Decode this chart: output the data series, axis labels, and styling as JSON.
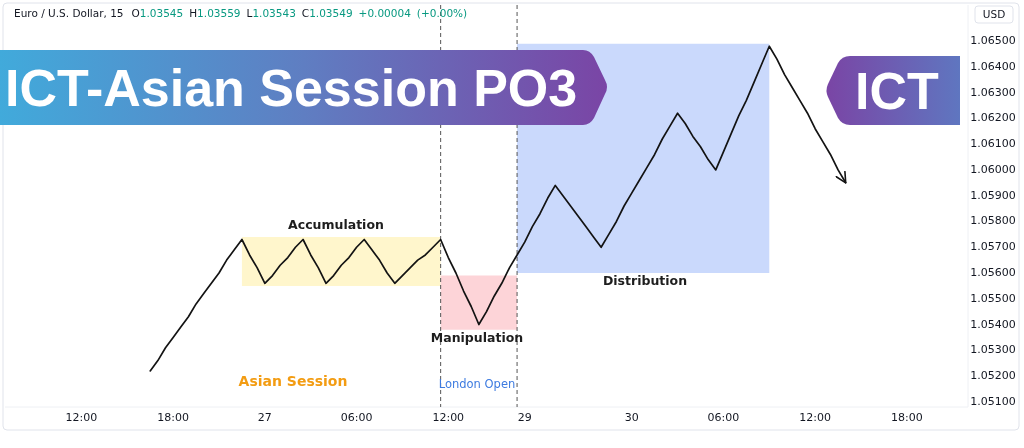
{
  "chart_data": {
    "type": "line",
    "title": "ICT-Asian Session PO3",
    "subtitle": "Euro / U.S. Dollar, 15",
    "ylabel": "USD",
    "categories": [
      null,
      null,
      null,
      null,
      null,
      null,
      null,
      null,
      null,
      null,
      "12:00",
      null,
      null,
      null,
      null,
      null,
      null,
      null,
      null,
      null,
      null,
      null,
      "18:00",
      null,
      null,
      null,
      null,
      null,
      null,
      null,
      null,
      null,
      null,
      null,
      "27",
      null,
      null,
      null,
      null,
      null,
      null,
      null,
      null,
      null,
      null,
      null,
      "06:00",
      null,
      null,
      null,
      null,
      null,
      null,
      null,
      null,
      null,
      null,
      null,
      "12:00",
      null,
      null,
      null,
      null,
      null,
      null,
      null,
      null,
      null,
      "29",
      null,
      null,
      null,
      null,
      null,
      null,
      null,
      null,
      null,
      null,
      null,
      null,
      null,
      "30",
      null,
      null,
      null,
      null,
      null,
      null,
      null,
      null,
      null,
      null,
      null,
      "06:00",
      null,
      null,
      null,
      null,
      null,
      null,
      null,
      null,
      null,
      null,
      null,
      "12:00",
      null,
      null,
      null,
      null,
      null,
      null,
      null,
      null,
      null,
      null,
      null,
      "18:00",
      null,
      null,
      null,
      null,
      null,
      null,
      null,
      null
    ],
    "ylim": [
      1.0508,
      1.0664
    ],
    "yticks": [
      {
        "value": 1.051,
        "label": "1.05100"
      },
      {
        "value": 1.052,
        "label": "1.05200"
      },
      {
        "value": 1.053,
        "label": "1.05300"
      },
      {
        "value": 1.054,
        "label": "1.05400"
      },
      {
        "value": 1.055,
        "label": "1.05500"
      },
      {
        "value": 1.056,
        "label": "1.05600"
      },
      {
        "value": 1.057,
        "label": "1.05700"
      },
      {
        "value": 1.058,
        "label": "1.05800"
      },
      {
        "value": 1.059,
        "label": "1.05900"
      },
      {
        "value": 1.06,
        "label": "1.06000"
      },
      {
        "value": 1.061,
        "label": "1.06100"
      },
      {
        "value": 1.062,
        "label": "1.06200"
      },
      {
        "value": 1.063,
        "label": "1.06300"
      },
      {
        "value": 1.064,
        "label": "1.06400"
      },
      {
        "value": 1.065,
        "label": "1.06500"
      }
    ],
    "series": [
      {
        "type": "area",
        "color": "#fff6cc",
        "values": [
          null,
          null,
          null,
          null,
          null,
          null,
          null,
          null,
          null,
          null,
          null,
          null,
          null,
          null,
          null,
          null,
          null,
          null,
          null,
          null,
          null,
          null,
          null,
          null,
          null,
          null,
          null,
          null,
          null,
          null,
          null,
          null,
          null,
          null,
          null,
          null,
          null,
          null,
          null,
          null,
          null,
          null,
          null,
          null,
          null,
          null,
          null,
          null,
          null,
          null,
          null,
          null,
          null,
          null,
          null,
          null,
          null,
          null,
          null,
          null,
          null,
          null,
          null,
          null,
          null,
          null,
          null,
          null,
          null,
          null,
          null,
          null,
          null,
          null,
          null,
          null,
          null,
          null,
          null,
          null,
          null,
          null,
          null,
          null,
          null,
          null,
          null,
          null,
          null,
          null,
          null,
          null,
          null,
          null,
          null,
          null,
          null,
          null,
          null,
          null,
          null,
          null,
          null,
          null,
          null,
          null,
          null,
          null,
          null,
          null,
          null,
          null,
          null,
          null,
          null,
          null,
          null,
          null,
          null,
          null,
          null,
          null,
          null,
          null,
          null,
          null,
          null
        ],
        "lower": [
          null,
          null,
          null,
          null,
          null,
          null,
          null,
          null,
          null,
          null,
          null,
          null,
          null,
          null,
          null,
          null,
          null,
          null,
          null,
          null,
          null,
          null,
          null,
          null,
          null,
          null,
          null,
          null,
          null,
          null,
          null,
          1.0555,
          1.0555,
          1.0555,
          1.0555,
          1.0555,
          1.0555,
          1.0555,
          1.0555,
          1.0555,
          1.0555,
          1.0555,
          1.0555,
          1.0555,
          1.0555,
          1.0555,
          1.0555,
          1.0555,
          1.0555,
          1.0555,
          1.0555,
          1.0555,
          1.0555,
          1.0555,
          1.0555,
          1.0555,
          1.0555,
          1.0555,
          null,
          null,
          null,
          null,
          null,
          null,
          null,
          null,
          null,
          null,
          null,
          null,
          null,
          null,
          null,
          null,
          null,
          null,
          null,
          null,
          null,
          null,
          null,
          null,
          null,
          null,
          null,
          null,
          null,
          null,
          null,
          null,
          null,
          null,
          null,
          null,
          null,
          null,
          null,
          null,
          null,
          null,
          null,
          null,
          null,
          null,
          null,
          null,
          null,
          null,
          null,
          null,
          null,
          null,
          null,
          null,
          null,
          null,
          null,
          null,
          null,
          null,
          null,
          null,
          null,
          null,
          null,
          null,
          null
        ],
        "upper": [
          null,
          null,
          null,
          null,
          null,
          null,
          null,
          null,
          null,
          null,
          null,
          null,
          null,
          null,
          null,
          null,
          null,
          null,
          null,
          null,
          null,
          null,
          null,
          null,
          null,
          null,
          null,
          null,
          null,
          null,
          null,
          1.0574,
          1.0574,
          1.0574,
          1.0574,
          1.0574,
          1.0574,
          1.0574,
          1.0574,
          1.0574,
          1.0574,
          1.0574,
          1.0574,
          1.0574,
          1.0574,
          1.0574,
          1.0574,
          1.0574,
          1.0574,
          1.0574,
          1.0574,
          1.0574,
          1.0574,
          1.0574,
          1.0574,
          1.0574,
          1.0574,
          1.0574,
          null,
          null,
          null,
          null,
          null,
          null,
          null,
          null,
          null,
          null,
          null,
          null,
          null,
          null,
          null,
          null,
          null,
          null,
          null,
          null,
          null,
          null,
          null,
          null,
          null,
          null,
          null,
          null,
          null,
          null,
          null,
          null,
          null,
          null,
          null,
          null,
          null,
          null,
          null,
          null,
          null,
          null,
          null,
          null,
          null,
          null,
          null,
          null,
          null,
          null,
          null,
          null,
          null,
          null,
          null,
          null,
          null,
          null,
          null,
          null,
          null,
          null,
          null,
          null,
          null,
          null,
          null,
          null,
          null
        ]
      },
      {
        "type": "area",
        "color": "#fdd4d8",
        "values": [
          null,
          null,
          null,
          null,
          null,
          null,
          null,
          null,
          null,
          null,
          null,
          null,
          null,
          null,
          null,
          null,
          null,
          null,
          null,
          null,
          null,
          null,
          null,
          null,
          null,
          null,
          null,
          null,
          null,
          null,
          null,
          null,
          null,
          null,
          null,
          null,
          null,
          null,
          null,
          null,
          null,
          null,
          null,
          null,
          null,
          null,
          null,
          null,
          null,
          null,
          null,
          null,
          null,
          null,
          null,
          null,
          null,
          null,
          null,
          null,
          null,
          null,
          null,
          null,
          null,
          null,
          null,
          null,
          null,
          null,
          null,
          null,
          null,
          null,
          null,
          null,
          null,
          null,
          null,
          null,
          null,
          null,
          null,
          null,
          null,
          null,
          null,
          null,
          null,
          null,
          null,
          null,
          null,
          null,
          null,
          null,
          null,
          null,
          null,
          null,
          null,
          null,
          null,
          null,
          null,
          null,
          null,
          null,
          null,
          null,
          null,
          null,
          null,
          null,
          null,
          null,
          null,
          null,
          null,
          null,
          null,
          null,
          null,
          null,
          null,
          null,
          null
        ],
        "lower": [
          null,
          null,
          null,
          null,
          null,
          null,
          null,
          null,
          null,
          null,
          null,
          null,
          null,
          null,
          null,
          null,
          null,
          null,
          null,
          null,
          null,
          null,
          null,
          null,
          null,
          null,
          null,
          null,
          null,
          null,
          null,
          null,
          null,
          null,
          null,
          null,
          null,
          null,
          null,
          null,
          null,
          null,
          null,
          null,
          null,
          null,
          null,
          null,
          null,
          null,
          null,
          null,
          null,
          null,
          null,
          null,
          null,
          1.0538,
          1.0538,
          1.0538,
          1.0538,
          1.0538,
          1.0538,
          1.0538,
          1.0538,
          1.0538,
          1.0538,
          1.0538,
          null,
          null,
          null,
          null,
          null,
          null,
          null,
          null,
          null,
          null,
          null,
          null,
          null,
          null,
          null,
          null,
          null,
          null,
          null,
          null,
          null,
          null,
          null,
          null,
          null,
          null,
          null,
          null,
          null,
          null,
          null,
          null,
          null,
          null,
          null,
          null,
          null,
          null,
          null,
          null,
          null,
          null,
          null,
          null,
          null,
          null,
          null,
          null,
          null,
          null,
          null,
          null,
          null,
          null,
          null,
          null,
          null,
          null,
          null
        ],
        "upper": [
          null,
          null,
          null,
          null,
          null,
          null,
          null,
          null,
          null,
          null,
          null,
          null,
          null,
          null,
          null,
          null,
          null,
          null,
          null,
          null,
          null,
          null,
          null,
          null,
          null,
          null,
          null,
          null,
          null,
          null,
          null,
          null,
          null,
          null,
          null,
          null,
          null,
          null,
          null,
          null,
          null,
          null,
          null,
          null,
          null,
          null,
          null,
          null,
          null,
          null,
          null,
          null,
          null,
          null,
          null,
          null,
          null,
          1.0559,
          1.0559,
          1.0559,
          1.0559,
          1.0559,
          1.0559,
          1.0559,
          1.0559,
          1.0559,
          1.0559,
          1.0559,
          null,
          null,
          null,
          null,
          null,
          null,
          null,
          null,
          null,
          null,
          null,
          null,
          null,
          null,
          null,
          null,
          null,
          null,
          null,
          null,
          null,
          null,
          null,
          null,
          null,
          null,
          null,
          null,
          null,
          null,
          null,
          null,
          null,
          null,
          null,
          null,
          null,
          null,
          null,
          null,
          null,
          null,
          null,
          null,
          null,
          null,
          null,
          null,
          null,
          null,
          null,
          null,
          null,
          null,
          null,
          null,
          null,
          null,
          null
        ]
      },
      {
        "type": "area",
        "color": "#cad9fc",
        "values": [
          null,
          null,
          null,
          null,
          null,
          null,
          null,
          null,
          null,
          null,
          null,
          null,
          null,
          null,
          null,
          null,
          null,
          null,
          null,
          null,
          null,
          null,
          null,
          null,
          null,
          null,
          null,
          null,
          null,
          null,
          null,
          null,
          null,
          null,
          null,
          null,
          null,
          null,
          null,
          null,
          null,
          null,
          null,
          null,
          null,
          null,
          null,
          null,
          null,
          null,
          null,
          null,
          null,
          null,
          null,
          null,
          null,
          null,
          null,
          null,
          null,
          null,
          null,
          null,
          null,
          null,
          null,
          null,
          null,
          null,
          null,
          null,
          null,
          null,
          null,
          null,
          null,
          null,
          null,
          null,
          null,
          null,
          null,
          null,
          null,
          null,
          null,
          null,
          null,
          null,
          null,
          null,
          null,
          null,
          null,
          null,
          null,
          null,
          null,
          null,
          null,
          null,
          null,
          null,
          null,
          null,
          null,
          null,
          null,
          null,
          null,
          null,
          null,
          null,
          null,
          null,
          null,
          null,
          null,
          null,
          null,
          null,
          null,
          null,
          null,
          null,
          null
        ],
        "lower": [
          null,
          null,
          null,
          null,
          null,
          null,
          null,
          null,
          null,
          null,
          null,
          null,
          null,
          null,
          null,
          null,
          null,
          null,
          null,
          null,
          null,
          null,
          null,
          null,
          null,
          null,
          null,
          null,
          null,
          null,
          null,
          null,
          null,
          null,
          null,
          null,
          null,
          null,
          null,
          null,
          null,
          null,
          null,
          null,
          null,
          null,
          null,
          null,
          null,
          null,
          null,
          null,
          null,
          null,
          null,
          null,
          null,
          null,
          null,
          null,
          null,
          null,
          null,
          null,
          null,
          null,
          null,
          1.056,
          1.056,
          1.056,
          1.056,
          1.056,
          1.056,
          1.056,
          1.056,
          1.056,
          1.056,
          1.056,
          1.056,
          1.056,
          1.056,
          1.056,
          1.056,
          1.056,
          1.056,
          1.056,
          1.056,
          1.056,
          1.056,
          1.056,
          1.056,
          1.056,
          1.056,
          1.056,
          1.056,
          1.056,
          1.056,
          1.056,
          1.056,
          1.056,
          1.056,
          null,
          null,
          null,
          null,
          null,
          null,
          null,
          null,
          null,
          null,
          null,
          null,
          null,
          null,
          null,
          null,
          null,
          null,
          null,
          null,
          null,
          null,
          null,
          null,
          null,
          null
        ],
        "upper": [
          null,
          null,
          null,
          null,
          null,
          null,
          null,
          null,
          null,
          null,
          null,
          null,
          null,
          null,
          null,
          null,
          null,
          null,
          null,
          null,
          null,
          null,
          null,
          null,
          null,
          null,
          null,
          null,
          null,
          null,
          null,
          null,
          null,
          null,
          null,
          null,
          null,
          null,
          null,
          null,
          null,
          null,
          null,
          null,
          null,
          null,
          null,
          null,
          null,
          null,
          null,
          null,
          null,
          null,
          null,
          null,
          null,
          null,
          null,
          null,
          null,
          null,
          null,
          null,
          null,
          null,
          null,
          1.0649,
          1.0649,
          1.0649,
          1.0649,
          1.0649,
          1.0649,
          1.0649,
          1.0649,
          1.0649,
          1.0649,
          1.0649,
          1.0649,
          1.0649,
          1.0649,
          1.0649,
          1.0649,
          1.0649,
          1.0649,
          1.0649,
          1.0649,
          1.0649,
          1.0649,
          1.0649,
          1.0649,
          1.0649,
          1.0649,
          1.0649,
          1.0649,
          1.0649,
          1.0649,
          1.0649,
          1.0649,
          1.0649,
          1.0649,
          null,
          null,
          null,
          null,
          null,
          null,
          null,
          null,
          null,
          null,
          null,
          null,
          null,
          null,
          null,
          null,
          null,
          null,
          null,
          null,
          null,
          null,
          null,
          null,
          null,
          null
        ]
      },
      {
        "color": "#131313",
        "values": [
          null,
          null,
          null,
          null,
          null,
          null,
          null,
          null,
          null,
          null,
          null,
          null,
          null,
          null,
          null,
          null,
          null,
          null,
          null,
          1.0522,
          1.0526,
          1.0531,
          1.0535,
          1.0539,
          1.0543,
          1.0548,
          1.0552,
          1.0556,
          1.056,
          1.0565,
          1.0569,
          1.0573,
          1.0567,
          1.0562,
          1.0556,
          1.0559,
          1.0563,
          1.0566,
          1.057,
          1.0573,
          1.0567,
          1.0562,
          1.0556,
          1.0559,
          1.0563,
          1.0566,
          1.057,
          1.0573,
          1.0569,
          1.0565,
          1.056,
          1.0556,
          1.0559,
          1.0562,
          1.0565,
          1.0567,
          1.057,
          1.0573,
          1.0566,
          1.056,
          1.0553,
          1.0547,
          1.054,
          1.0545,
          1.0551,
          1.0556,
          1.0562,
          1.0567,
          1.0572,
          1.0578,
          1.0583,
          1.0589,
          1.0594,
          1.059,
          1.0586,
          1.0582,
          1.0578,
          1.0574,
          1.057,
          1.0575,
          1.058,
          1.0586,
          1.0591,
          1.0596,
          1.0601,
          1.0606,
          1.0612,
          1.0617,
          1.0622,
          1.0618,
          1.0613,
          1.0609,
          1.0604,
          1.06,
          1.0607,
          1.0614,
          1.0621,
          1.0627,
          1.0634,
          1.0641,
          1.0648,
          1.0643,
          1.0637,
          1.0632,
          1.0627,
          1.0622,
          1.0616,
          1.0611,
          1.0606,
          1.06,
          1.0595,
          null,
          null,
          null,
          null,
          null,
          null,
          null,
          null,
          null,
          null,
          null,
          null,
          null,
          null,
          null,
          null
        ]
      }
    ],
    "annotations": [
      "O1.03545 H1.03559 L1.03543 C1.03549 +0.00004 (+0.00%)",
      "ICT",
      "Accumulation",
      "Manipulation",
      "Distribution",
      "Asian Session",
      "London Open"
    ]
  }
}
